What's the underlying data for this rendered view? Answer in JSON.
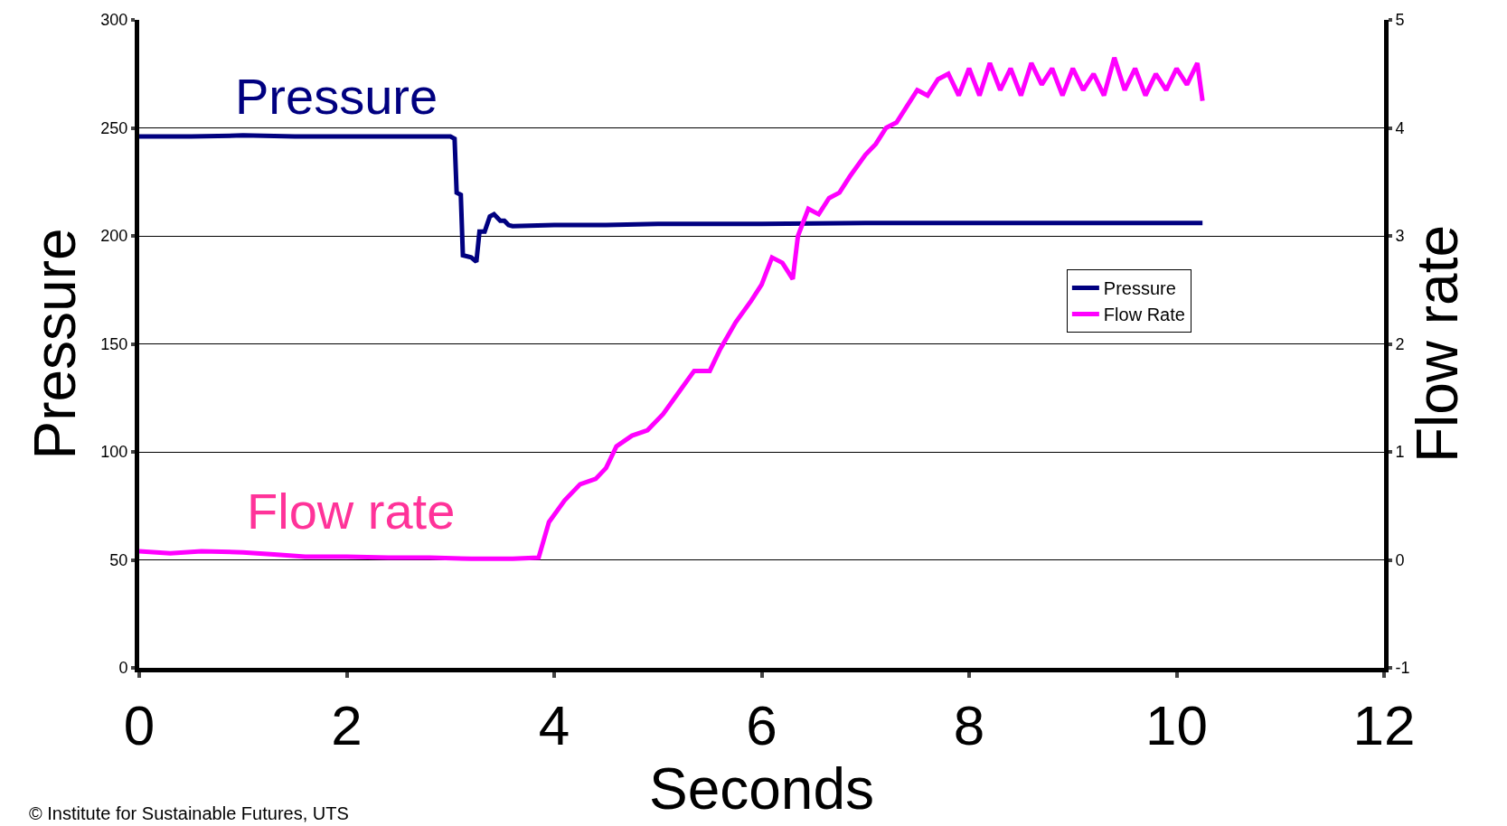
{
  "chart_data": {
    "type": "line",
    "xlabel": "Seconds",
    "ylabel": "Pressure",
    "y2label": "Flow rate",
    "xlim": [
      0,
      12
    ],
    "xticks": [
      0,
      2,
      4,
      6,
      8,
      10,
      12
    ],
    "ylim": [
      0,
      300
    ],
    "yticks": [
      0,
      50,
      100,
      150,
      200,
      250,
      300
    ],
    "y2lim": [
      -1,
      5
    ],
    "y2ticks": [
      -1,
      0,
      1,
      2,
      3,
      4,
      5
    ],
    "grid": "y",
    "legend": "right",
    "line_style": "solid",
    "marker": "none",
    "series": [
      {
        "name": "Pressure",
        "color": "#000080",
        "x": [
          0,
          0.5,
          1,
          1.5,
          2,
          2.5,
          3.0,
          3.04,
          3.06,
          3.1,
          3.12,
          3.2,
          3.25,
          3.28,
          3.33,
          3.38,
          3.42,
          3.48,
          3.52,
          3.56,
          3.6,
          4,
          4.5,
          5,
          6,
          7,
          8,
          9,
          10,
          10.25
        ],
        "values": [
          246,
          246,
          246.5,
          246,
          246,
          246,
          246,
          245,
          220,
          219,
          191,
          190,
          188,
          202,
          202,
          209,
          210,
          207,
          207,
          205,
          204.5,
          205,
          205,
          205.5,
          205.5,
          206,
          206,
          206,
          206,
          206
        ]
      },
      {
        "name": "Flow Rate",
        "axis": "y2",
        "color": "#ff00ff",
        "x": [
          0,
          0.3,
          0.6,
          1.0,
          1.3,
          1.6,
          2.0,
          2.4,
          2.8,
          3.2,
          3.6,
          3.85,
          3.95,
          4.1,
          4.25,
          4.4,
          4.5,
          4.6,
          4.75,
          4.9,
          5.05,
          5.2,
          5.35,
          5.5,
          5.6,
          5.75,
          5.9,
          6.0,
          6.1,
          6.2,
          6.3,
          6.35,
          6.45,
          6.55,
          6.65,
          6.75,
          6.85,
          7.0,
          7.1,
          7.2,
          7.3,
          7.4,
          7.5,
          7.6,
          7.7,
          7.8,
          7.9,
          8.0,
          8.1,
          8.2,
          8.3,
          8.4,
          8.5,
          8.6,
          8.7,
          8.8,
          8.9,
          9.0,
          9.1,
          9.2,
          9.3,
          9.4,
          9.5,
          9.6,
          9.7,
          9.8,
          9.9,
          10.0,
          10.1,
          10.2,
          10.25
        ],
        "values": [
          0.08,
          0.06,
          0.08,
          0.07,
          0.05,
          0.03,
          0.03,
          0.02,
          0.02,
          0.01,
          0.01,
          0.02,
          0.35,
          0.55,
          0.7,
          0.75,
          0.85,
          1.05,
          1.15,
          1.2,
          1.35,
          1.55,
          1.75,
          1.75,
          1.95,
          2.2,
          2.4,
          2.55,
          2.8,
          2.75,
          2.6,
          3.0,
          3.25,
          3.2,
          3.35,
          3.4,
          3.55,
          3.75,
          3.85,
          4.0,
          4.05,
          4.2,
          4.35,
          4.3,
          4.45,
          4.5,
          4.3,
          4.55,
          4.3,
          4.6,
          4.35,
          4.55,
          4.3,
          4.6,
          4.4,
          4.55,
          4.3,
          4.55,
          4.35,
          4.5,
          4.3,
          4.65,
          4.35,
          4.55,
          4.3,
          4.5,
          4.35,
          4.55,
          4.4,
          4.6,
          4.25
        ]
      }
    ],
    "annotations": [
      "Pressure",
      "Flow rate",
      "© Institute for Sustainable Futures, UTS"
    ]
  }
}
